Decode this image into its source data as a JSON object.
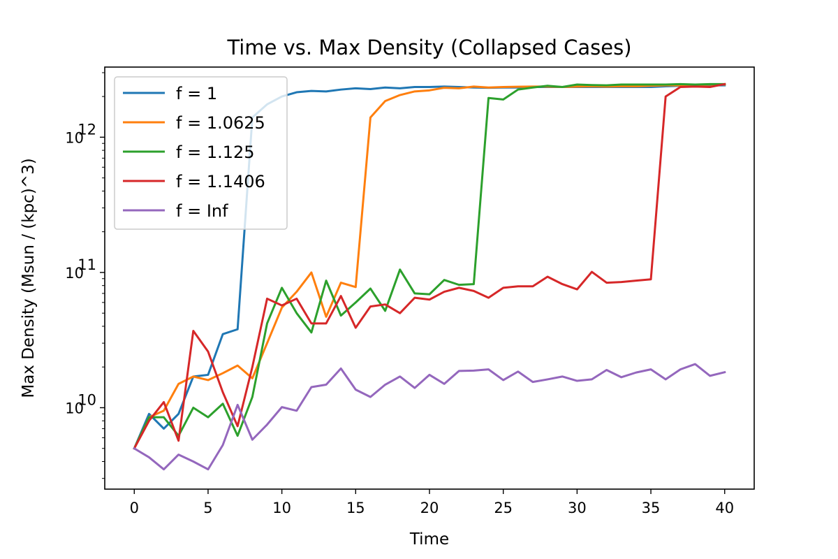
{
  "chart_data": {
    "type": "line",
    "title": "Time vs. Max Density (Collapsed Cases)",
    "xlabel": "Time",
    "ylabel": "Max Density (Msun / (kpc)^3)",
    "yscale": "log",
    "xlim": [
      -2,
      42
    ],
    "ylim": [
      2500000000,
      3300000000000
    ],
    "xticks": [
      0,
      5,
      10,
      15,
      20,
      25,
      30,
      35,
      40
    ],
    "yticks": [
      {
        "value": 10000000000,
        "base": "10",
        "exp": "10"
      },
      {
        "value": 100000000000,
        "base": "10",
        "exp": "11"
      },
      {
        "value": 1000000000000,
        "base": "10",
        "exp": "12"
      }
    ],
    "legend_position": "upper-left",
    "grid": false,
    "x": [
      0,
      1,
      2,
      3,
      4,
      5,
      6,
      7,
      8,
      9,
      10,
      11,
      12,
      13,
      14,
      15,
      16,
      17,
      18,
      19,
      20,
      21,
      22,
      23,
      24,
      25,
      26,
      27,
      28,
      29,
      30,
      31,
      32,
      33,
      34,
      35,
      36,
      37,
      38,
      39,
      40
    ],
    "series": [
      {
        "name": "f = 1",
        "color": "#1f77b4",
        "values": [
          5000000000.0,
          9000000000.0,
          7000000000.0,
          9000000000.0,
          17000000000.0,
          17500000000.0,
          35000000000.0,
          38000000000.0,
          1400000000000.0,
          1750000000000.0,
          2000000000000.0,
          2150000000000.0,
          2200000000000.0,
          2180000000000.0,
          2250000000000.0,
          2300000000000.0,
          2270000000000.0,
          2330000000000.0,
          2300000000000.0,
          2350000000000.0,
          2350000000000.0,
          2370000000000.0,
          2350000000000.0,
          2330000000000.0,
          2320000000000.0,
          2330000000000.0,
          2330000000000.0,
          2350000000000.0,
          2350000000000.0,
          2350000000000.0,
          2350000000000.0,
          2350000000000.0,
          2350000000000.0,
          2350000000000.0,
          2350000000000.0,
          2350000000000.0,
          2380000000000.0,
          2400000000000.0,
          2400000000000.0,
          2420000000000.0,
          2420000000000.0
        ]
      },
      {
        "name": "f = 1.0625",
        "color": "#ff7f0e",
        "values": [
          5000000000.0,
          8500000000.0,
          9500000000.0,
          15000000000.0,
          17000000000.0,
          16000000000.0,
          18000000000.0,
          20500000000.0,
          16500000000.0,
          30000000000.0,
          55000000000.0,
          72000000000.0,
          100000000000.0,
          47000000000.0,
          84000000000.0,
          78000000000.0,
          1400000000000.0,
          1850000000000.0,
          2050000000000.0,
          2180000000000.0,
          2220000000000.0,
          2320000000000.0,
          2300000000000.0,
          2370000000000.0,
          2330000000000.0,
          2350000000000.0,
          2360000000000.0,
          2370000000000.0,
          2370000000000.0,
          2350000000000.0,
          2370000000000.0,
          2380000000000.0,
          2370000000000.0,
          2380000000000.0,
          2380000000000.0,
          2400000000000.0,
          2420000000000.0,
          2420000000000.0,
          2430000000000.0,
          2450000000000.0,
          2450000000000.0
        ]
      },
      {
        "name": "f = 1.125",
        "color": "#2ca02c",
        "values": [
          5000000000.0,
          8500000000.0,
          8500000000.0,
          6200000000.0,
          10000000000.0,
          8500000000.0,
          10700000000.0,
          6200000000.0,
          12000000000.0,
          42000000000.0,
          77000000000.0,
          50000000000.0,
          36000000000.0,
          87000000000.0,
          48000000000.0,
          60000000000.0,
          76000000000.0,
          52000000000.0,
          105000000000.0,
          70000000000.0,
          69000000000.0,
          88000000000.0,
          81000000000.0,
          82000000000.0,
          1950000000000.0,
          1900000000000.0,
          2250000000000.0,
          2330000000000.0,
          2400000000000.0,
          2350000000000.0,
          2450000000000.0,
          2430000000000.0,
          2420000000000.0,
          2450000000000.0,
          2450000000000.0,
          2450000000000.0,
          2450000000000.0,
          2470000000000.0,
          2450000000000.0,
          2470000000000.0,
          2470000000000.0
        ]
      },
      {
        "name": "f = 1.1406",
        "color": "#d62728",
        "values": [
          5000000000.0,
          8000000000.0,
          11000000000.0,
          5700000000.0,
          37000000000.0,
          26000000000.0,
          13000000000.0,
          7300000000.0,
          20000000000.0,
          64000000000.0,
          57000000000.0,
          64000000000.0,
          42000000000.0,
          42000000000.0,
          67000000000.0,
          39000000000.0,
          56000000000.0,
          58000000000.0,
          50000000000.0,
          65000000000.0,
          63000000000.0,
          72000000000.0,
          77000000000.0,
          73000000000.0,
          65000000000.0,
          77000000000.0,
          79000000000.0,
          79000000000.0,
          93000000000.0,
          82000000000.0,
          75000000000.0,
          101000000000.0,
          84000000000.0,
          85000000000.0,
          87000000000.0,
          89000000000.0,
          2000000000000.0,
          2350000000000.0,
          2370000000000.0,
          2350000000000.0,
          2470000000000.0
        ]
      },
      {
        "name": "f = Inf",
        "color": "#9467bd",
        "values": [
          5000000000.0,
          4300000000.0,
          3500000000.0,
          4500000000.0,
          4000000000.0,
          3500000000.0,
          5300000000.0,
          10500000000.0,
          5800000000.0,
          7500000000.0,
          10100000000.0,
          9500000000.0,
          14200000000.0,
          14800000000.0,
          19500000000.0,
          13600000000.0,
          12000000000.0,
          14800000000.0,
          17000000000.0,
          14000000000.0,
          17500000000.0,
          15000000000.0,
          18700000000.0,
          18800000000.0,
          19200000000.0,
          16000000000.0,
          18500000000.0,
          15500000000.0,
          16200000000.0,
          17000000000.0,
          15800000000.0,
          16200000000.0,
          19000000000.0,
          16800000000.0,
          18200000000.0,
          19200000000.0,
          16200000000.0,
          19200000000.0,
          21000000000.0,
          17200000000.0,
          18300000000.0
        ]
      }
    ]
  }
}
